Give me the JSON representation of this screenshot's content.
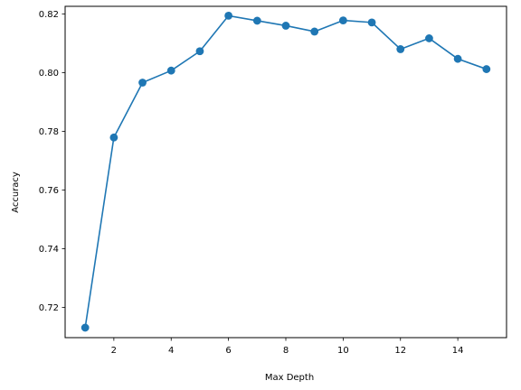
{
  "chart_data": {
    "type": "line",
    "title": "",
    "xlabel": "Max Depth",
    "ylabel": "Accuracy",
    "xlim": [
      0.3,
      15.7
    ],
    "ylim": [
      0.7097,
      0.8226
    ],
    "x_ticks": [
      2,
      4,
      6,
      8,
      10,
      12,
      14
    ],
    "y_ticks": [
      0.72,
      0.74,
      0.76,
      0.78,
      0.8,
      0.82
    ],
    "y_tick_labels": [
      "0.72",
      "0.74",
      "0.76",
      "0.78",
      "0.80",
      "0.82"
    ],
    "grid": false,
    "legend": false,
    "series": [
      {
        "x": [
          1,
          2,
          3,
          4,
          5,
          6,
          7,
          8,
          9,
          10,
          11,
          12,
          13,
          14,
          15
        ],
        "values": [
          0.7131,
          0.7779,
          0.7966,
          0.8007,
          0.8073,
          0.8194,
          0.8177,
          0.816,
          0.814,
          0.8178,
          0.8171,
          0.808,
          0.8117,
          0.8047,
          0.8012
        ],
        "color": "#1f77b4",
        "marker": "circle"
      }
    ]
  }
}
